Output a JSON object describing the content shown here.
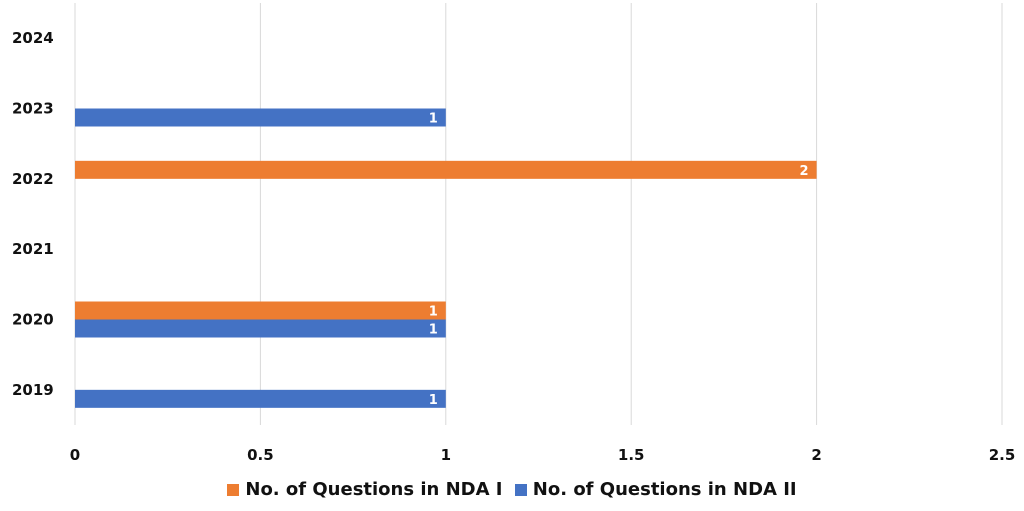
{
  "chart_data": {
    "type": "bar",
    "orientation": "horizontal",
    "categories": [
      "2019",
      "2020",
      "2021",
      "2022",
      "2023",
      "2024"
    ],
    "series": [
      {
        "name": "No. of Questions in NDA I",
        "color": "#ED7D31",
        "values": [
          null,
          1,
          null,
          2,
          null,
          null
        ]
      },
      {
        "name": "No. of Questions in NDA II",
        "color": "#4472C4",
        "values": [
          1,
          1,
          null,
          null,
          1,
          null
        ]
      }
    ],
    "x_ticks": [
      "0",
      "0.5",
      "1",
      "1.5",
      "2",
      "2.5"
    ],
    "xlim": [
      0,
      2.5
    ],
    "grid": "vertical",
    "legend_position": "bottom",
    "data_labels": true
  }
}
